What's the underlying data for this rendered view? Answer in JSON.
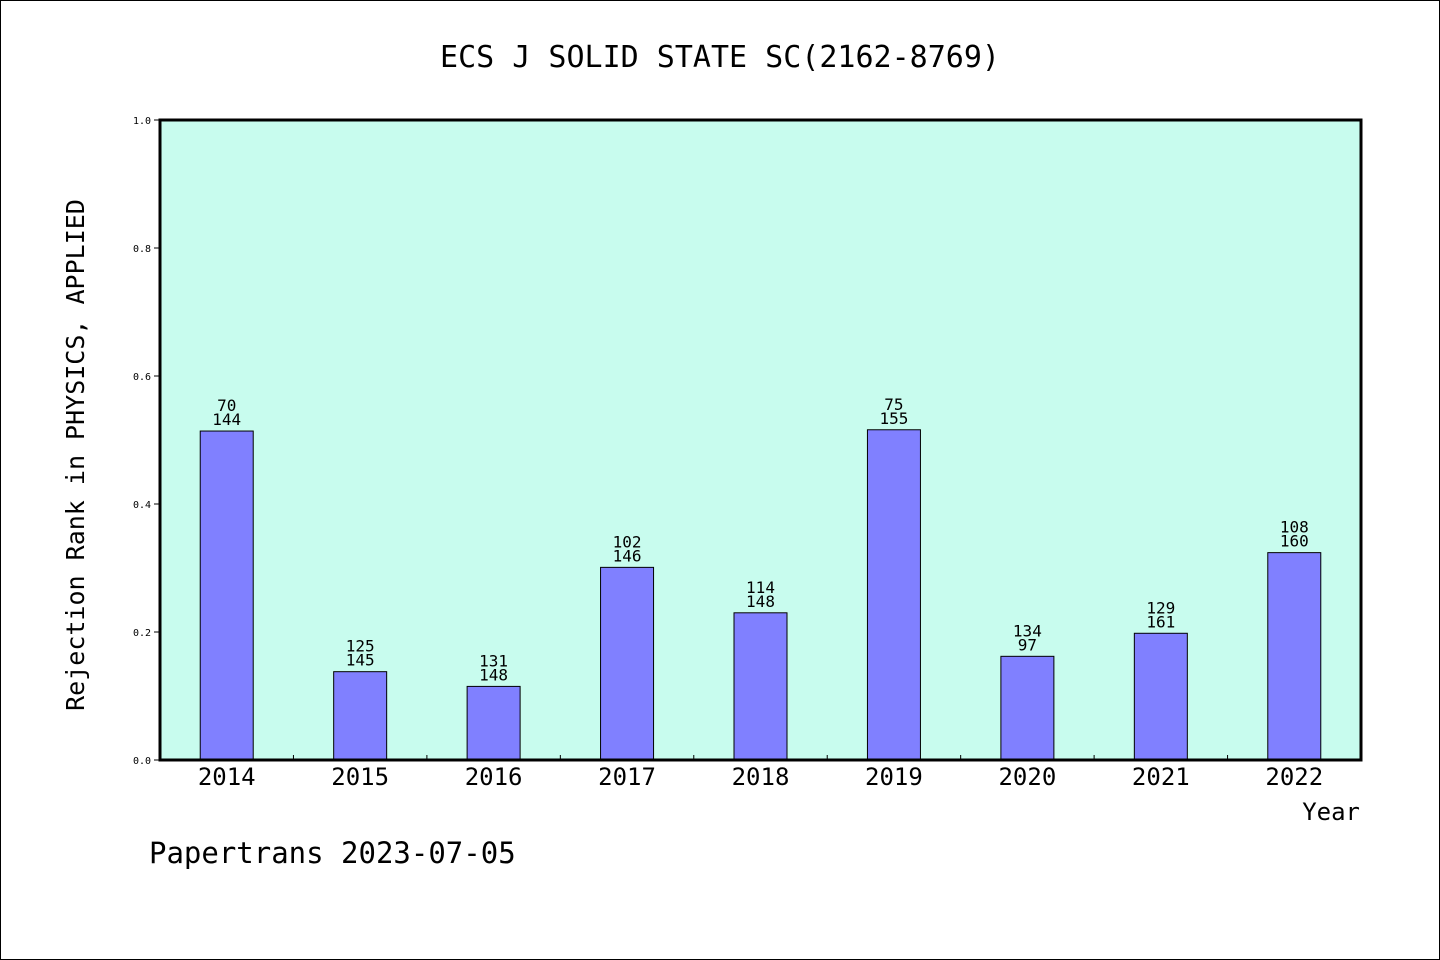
{
  "chart_data": {
    "type": "bar",
    "title": "ECS J SOLID STATE SC(2162-8769)",
    "xlabel": "Year",
    "ylabel": "Rejection Rank in PHYSICS, APPLIED",
    "categories": [
      "2014",
      "2015",
      "2016",
      "2017",
      "2018",
      "2019",
      "2020",
      "2021",
      "2022"
    ],
    "values": [
      0.514,
      0.138,
      0.115,
      0.301,
      0.23,
      0.516,
      0.162,
      0.198,
      0.324
    ],
    "bar_labels_top": [
      "70",
      "125",
      "131",
      "102",
      "114",
      "75",
      "134",
      "129",
      "108"
    ],
    "bar_labels_bottom": [
      "144",
      "145",
      "148",
      "146",
      "148",
      "155",
      "97",
      "161",
      "160"
    ],
    "ylim": [
      0,
      1.0
    ],
    "yticks": [
      "0.0",
      "0.2",
      "0.4",
      "0.6",
      "0.8",
      "1.0"
    ],
    "grid": false,
    "colors": {
      "plot_background": "#c8fcee",
      "bar_fill": "#8080ff",
      "bar_stroke": "#000000"
    }
  },
  "footer": {
    "text": "Papertrans 2023-07-05"
  }
}
